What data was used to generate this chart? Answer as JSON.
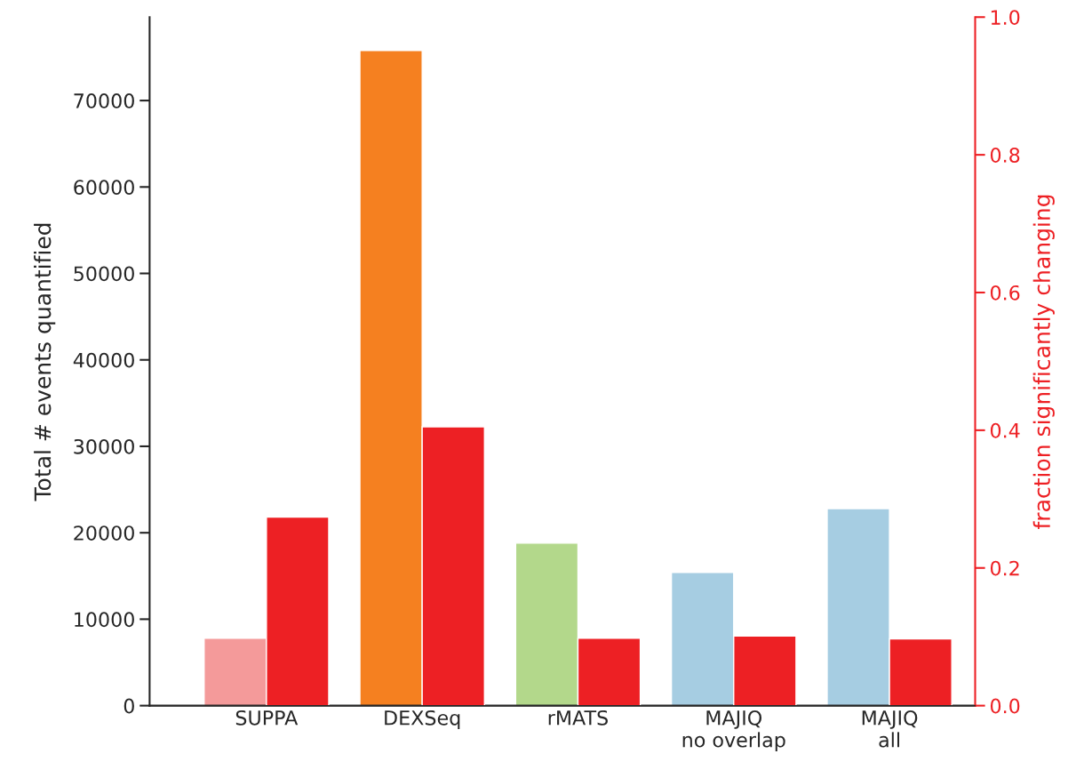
{
  "chart_data": {
    "type": "bar",
    "categories": [
      "SUPPA",
      "DEXSeq",
      "rMATS",
      "MAJIQ\nno overlap",
      "MAJIQ\nall"
    ],
    "series": [
      {
        "colors": [
          "#f49a9a",
          "#f58020",
          "#b3d88b",
          "#a6cde2",
          "#a6cde2"
        ],
        "values": [
          7800,
          75800,
          18800,
          15400,
          22800
        ]
      },
      {
        "color": "#ed2024",
        "axis": "y2",
        "values": [
          0.274,
          0.405,
          0.098,
          0.101,
          0.097
        ]
      }
    ],
    "ylabel": "Total # events quantified",
    "y2label": "fraction significantly changing",
    "ylim": [
      0,
      79650
    ],
    "yticks": [
      0,
      10000,
      20000,
      30000,
      40000,
      50000,
      60000,
      70000
    ],
    "y2lim": [
      0,
      1.0
    ],
    "y2ticks": [
      {
        "value": 0,
        "label": "0.0"
      },
      0.2,
      0.4,
      0.6,
      0.8,
      {
        "value": 1,
        "label": "1.0"
      }
    ],
    "grid": false,
    "legend": false
  }
}
